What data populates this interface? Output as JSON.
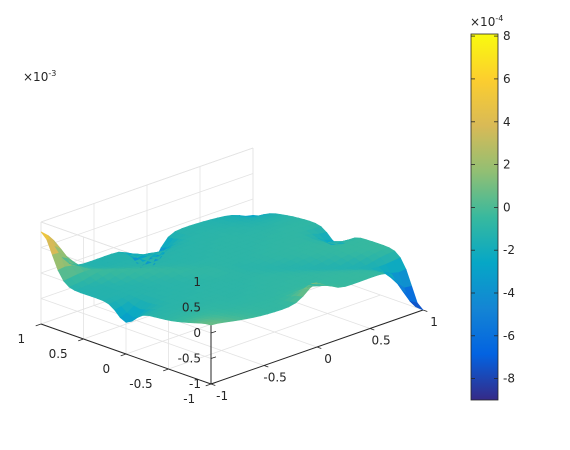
{
  "chart_data": {
    "type": "surface",
    "title": "",
    "xlabel": "",
    "ylabel": "",
    "zlabel": "",
    "x_range": [
      -1,
      1
    ],
    "y_range": [
      -1,
      1
    ],
    "zlim": [
      -1,
      1
    ],
    "x_ticks": [
      "-1",
      "-0.5",
      "0",
      "0.5",
      "1"
    ],
    "y_ticks": [
      "-1",
      "-0.5",
      "0",
      "0.5",
      "1"
    ],
    "z_ticks": [
      "-1",
      "-0.5",
      "0",
      "0.5",
      "1"
    ],
    "z_exponent": {
      "base": "×10",
      "power": "-3"
    },
    "colorbar": {
      "colormap": "parula",
      "range": [
        -9,
        8.1
      ],
      "ticks": [
        "-8",
        "-6",
        "-4",
        "-2",
        "0",
        "2",
        "4",
        "6",
        "8"
      ],
      "exponent": {
        "base": "×10",
        "power": "-4"
      }
    },
    "surface_features": [
      {
        "x": -1,
        "y": 1,
        "z": 0.8,
        "kind": "peak"
      },
      {
        "x": 1,
        "y": -1,
        "z": -0.9,
        "kind": "spike-down"
      },
      {
        "x": 0,
        "y": -1,
        "z": 0.3,
        "kind": "ridge-peak"
      },
      {
        "x": 1,
        "y": 0,
        "z": -0.3,
        "kind": "ridge-peak"
      },
      {
        "x": -1,
        "y": 0,
        "z": -0.3,
        "kind": "ridge-dip"
      },
      {
        "x": 0,
        "y": 1,
        "z": -0.6,
        "kind": "ridge-dip"
      },
      {
        "x": -1,
        "y": -1,
        "z": 0.1,
        "kind": "corner"
      },
      {
        "x": 1,
        "y": 1,
        "z": -0.4,
        "kind": "corner"
      }
    ],
    "grid": true,
    "colors": {
      "axis": "#262626",
      "grid": "#e3e3e3"
    }
  }
}
